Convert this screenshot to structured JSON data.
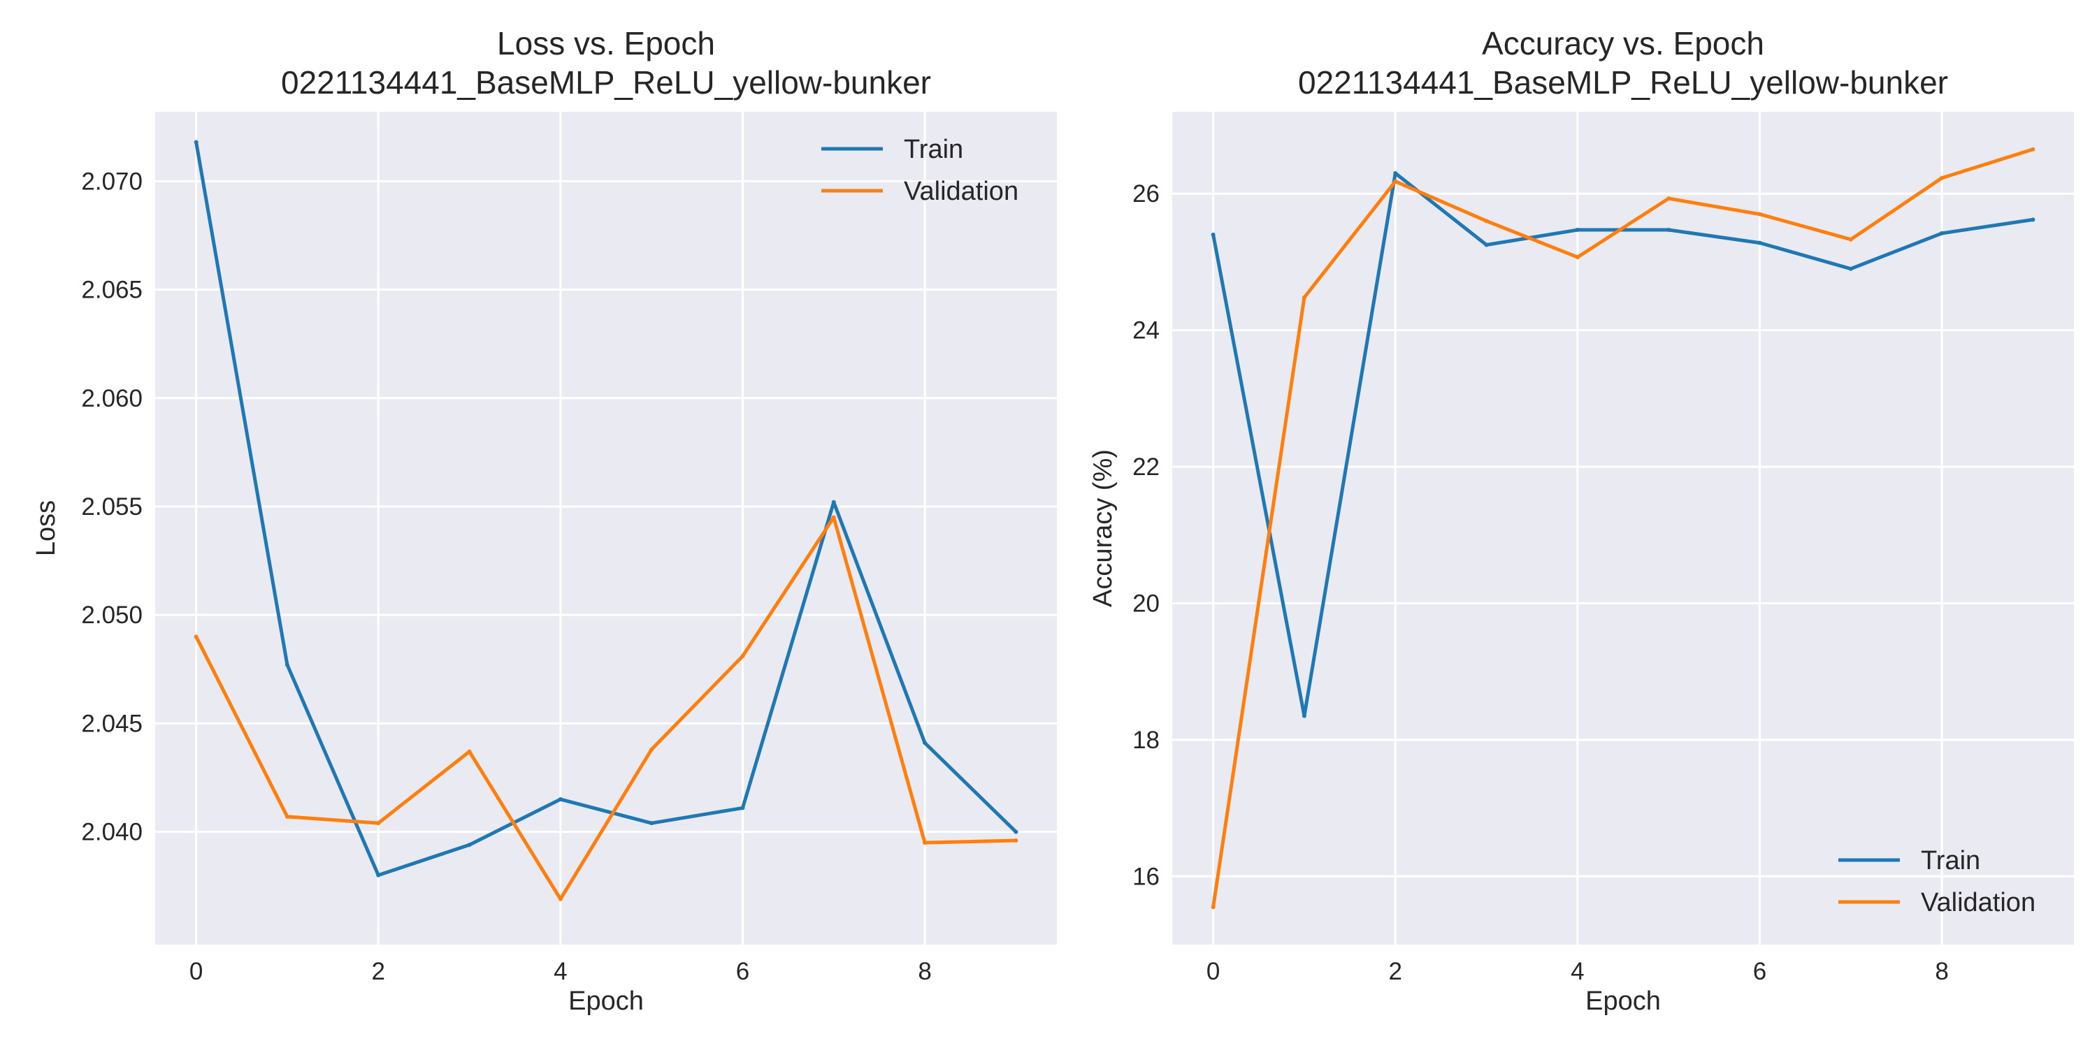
{
  "chart_data": [
    {
      "type": "line",
      "title": "Loss vs. Epoch",
      "subtitle": "0221134441_BaseMLP_ReLU_yellow-bunker",
      "xlabel": "Epoch",
      "ylabel": "Loss",
      "xlim": [
        -0.45,
        9.45
      ],
      "ylim": [
        2.0348,
        2.0732
      ],
      "xticks": [
        0,
        2,
        4,
        6,
        8
      ],
      "yticks": [
        2.04,
        2.045,
        2.05,
        2.055,
        2.06,
        2.065,
        2.07
      ],
      "ytick_labels": [
        "2.040",
        "2.045",
        "2.050",
        "2.055",
        "2.060",
        "2.065",
        "2.070"
      ],
      "grid": true,
      "legend_position": "upper right",
      "x": [
        0,
        1,
        2,
        3,
        4,
        5,
        6,
        7,
        8,
        9
      ],
      "series": [
        {
          "name": "Train",
          "color": "#1f77b4",
          "values": [
            2.0718,
            2.0477,
            2.038,
            2.0394,
            2.0415,
            2.0404,
            2.0411,
            2.0552,
            2.0441,
            2.04
          ]
        },
        {
          "name": "Validation",
          "color": "#ff7f0e",
          "values": [
            2.049,
            2.0407,
            2.0404,
            2.0437,
            2.0369,
            2.0438,
            2.0481,
            2.0545,
            2.0395,
            2.0396
          ]
        }
      ]
    },
    {
      "type": "line",
      "title": "Accuracy vs. Epoch",
      "subtitle": "0221134441_BaseMLP_ReLU_yellow-bunker",
      "xlabel": "Epoch",
      "ylabel": "Accuracy (%)",
      "xlim": [
        -0.45,
        9.45
      ],
      "ylim": [
        15.0,
        27.2
      ],
      "xticks": [
        0,
        2,
        4,
        6,
        8
      ],
      "yticks": [
        16,
        18,
        20,
        22,
        24,
        26
      ],
      "ytick_labels": [
        "16",
        "18",
        "20",
        "22",
        "24",
        "26"
      ],
      "grid": true,
      "legend_position": "lower right",
      "x": [
        0,
        1,
        2,
        3,
        4,
        5,
        6,
        7,
        8,
        9
      ],
      "series": [
        {
          "name": "Train",
          "color": "#1f77b4",
          "values": [
            25.4,
            18.35,
            26.3,
            25.25,
            25.47,
            25.47,
            25.28,
            24.9,
            25.42,
            25.62
          ]
        },
        {
          "name": "Validation",
          "color": "#ff7f0e",
          "values": [
            15.55,
            24.48,
            26.18,
            25.6,
            25.07,
            25.93,
            25.7,
            25.33,
            26.23,
            26.65
          ]
        }
      ]
    }
  ]
}
